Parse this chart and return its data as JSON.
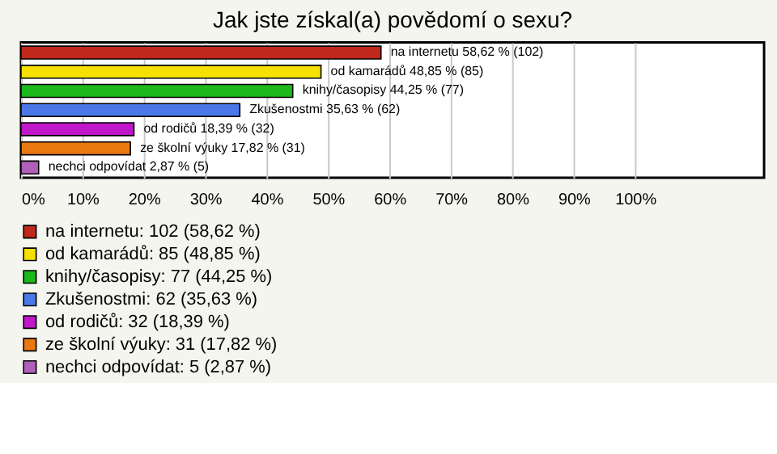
{
  "chart_data": {
    "type": "bar",
    "orientation": "horizontal",
    "title": "Jak jste získal(a) povědomí o sexu?",
    "categories": [
      null,
      null,
      null,
      null,
      null,
      null,
      null
    ],
    "series": [
      {
        "name": "na internetu: 102 (58,62 %)",
        "color": "#c0281c",
        "values": [
          58.62,
          null,
          null,
          null,
          null,
          null,
          null
        ],
        "value_labels": [
          "na internetu 58,62 % (102)",
          null,
          null,
          null,
          null,
          null,
          null
        ]
      },
      {
        "name": "od kamarádů: 85 (48,85 %)",
        "color": "#f5e000",
        "values": [
          null,
          48.85,
          null,
          null,
          null,
          null,
          null
        ],
        "value_labels": [
          null,
          "od kamarádů 48,85 % (85)",
          null,
          null,
          null,
          null,
          null
        ]
      },
      {
        "name": "knihy/časopisy: 77 (44,25 %)",
        "color": "#1cb81c",
        "values": [
          null,
          null,
          44.25,
          null,
          null,
          null,
          null
        ],
        "value_labels": [
          null,
          null,
          "knihy/časopisy 44,25 % (77)",
          null,
          null,
          null,
          null
        ]
      },
      {
        "name": "Zkušenostmi: 62 (35,63 %)",
        "color": "#4a78e8",
        "values": [
          null,
          null,
          null,
          35.63,
          null,
          null,
          null
        ],
        "value_labels": [
          null,
          null,
          null,
          "Zkušenostmi 35,63 % (62)",
          null,
          null,
          null
        ]
      },
      {
        "name": "od rodičů: 32 (18,39 %)",
        "color": "#c018c8",
        "values": [
          null,
          null,
          null,
          null,
          18.39,
          null,
          null
        ],
        "value_labels": [
          null,
          null,
          null,
          null,
          "od rodičů 18,39 % (32)",
          null,
          null
        ]
      },
      {
        "name": "ze školní výuky: 31 (17,82 %)",
        "color": "#e87810",
        "values": [
          null,
          null,
          null,
          null,
          null,
          17.82,
          null
        ],
        "value_labels": [
          null,
          null,
          null,
          null,
          null,
          "ze školní výuky 17,82 % (31)",
          null
        ]
      },
      {
        "name": "nechci odpovídat: 5 (2,87 %)",
        "color": "#b060b8",
        "values": [
          null,
          null,
          null,
          null,
          null,
          null,
          2.87
        ],
        "value_labels": [
          null,
          null,
          null,
          null,
          null,
          null,
          "nechci odpovídat 2,87 % (5)"
        ]
      }
    ],
    "xlim": [
      0,
      121
    ],
    "xticks": [
      {
        "value": 0,
        "label": "0%"
      },
      {
        "value": 10,
        "label": "10%"
      },
      {
        "value": 20,
        "label": "20%"
      },
      {
        "value": 30,
        "label": "30%"
      },
      {
        "value": 40,
        "label": "40%"
      },
      {
        "value": 50,
        "label": "50%"
      },
      {
        "value": 60,
        "label": "60%"
      },
      {
        "value": 70,
        "label": "70%"
      },
      {
        "value": 80,
        "label": "80%"
      },
      {
        "value": 90,
        "label": "90%"
      },
      {
        "value": 100,
        "label": "100%"
      }
    ],
    "grid": "x",
    "tick_labels": "x",
    "legend": "bottom"
  }
}
